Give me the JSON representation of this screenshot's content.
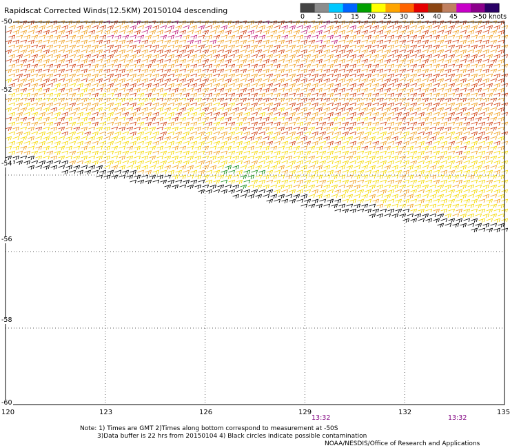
{
  "header": {
    "title": "Rapidscat Corrected Winds(12.5KM) 20150104 descending"
  },
  "wind_scale": {
    "labels": [
      "0",
      "5",
      "10",
      "15",
      "20",
      "25",
      "30",
      "35",
      "40",
      "45",
      ">50 knots"
    ],
    "colors": [
      "#444444",
      "#8c8c8c",
      "#00c8ff",
      "#0064ff",
      "#00a000",
      "#ffff00",
      "#ffa500",
      "#ff6400",
      "#e60000",
      "#8b4513",
      "#c08060",
      "#c800c8",
      "#8b008b",
      "#2a0066"
    ]
  },
  "map": {
    "lat_labels": [
      "-50",
      "-52",
      "-54",
      "-56",
      "-58",
      "-60"
    ],
    "lon_labels": [
      "120",
      "123",
      "126",
      "129",
      "132",
      "135"
    ],
    "time_labels": [
      "13:32",
      "13:32"
    ],
    "barb_colors": {
      "light": "#f5d800",
      "orange": "#f0a020",
      "dark": "#d04010",
      "magenta": "#c0207a",
      "green": "#108a10",
      "black": "#000000"
    }
  },
  "footer": {
    "note_line1": "Note: 1) Times are GMT 2)Times along bottom correspond to measurement at -50S",
    "note_line2": "3)Data buffer is 22 hrs from 20150104 4) Black circles indicate possible contamination",
    "credit": "NOAA/NESDIS/Office of Research and Applications"
  }
}
